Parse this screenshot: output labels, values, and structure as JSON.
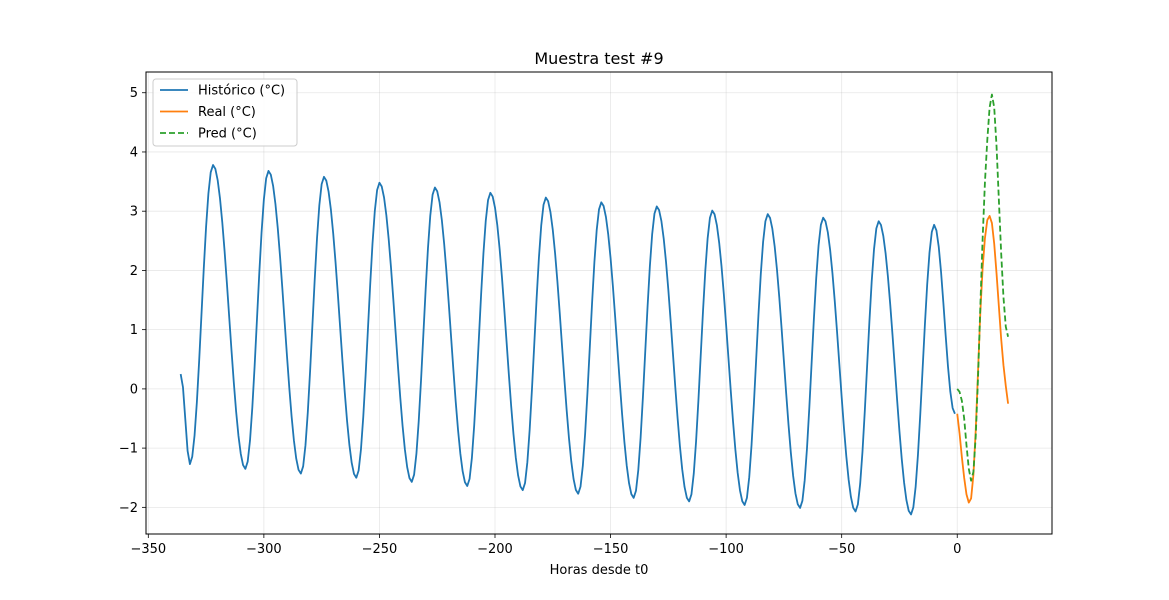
{
  "chart_data": {
    "type": "line",
    "title": "Muestra test #9",
    "xlabel": "Horas desde t0",
    "ylabel": "",
    "xlim": [
      -351,
      41
    ],
    "ylim": [
      -2.45,
      5.35
    ],
    "xticks": [
      -350,
      -300,
      -250,
      -200,
      -150,
      -100,
      -50,
      0
    ],
    "xtick_labels": [
      "−350",
      "−300",
      "−250",
      "−200",
      "−150",
      "−100",
      "−50",
      "0"
    ],
    "yticks": [
      -2,
      -1,
      0,
      1,
      2,
      3,
      4,
      5
    ],
    "ytick_labels": [
      "−2",
      "−1",
      "0",
      "1",
      "2",
      "3",
      "4",
      "5"
    ],
    "grid": true,
    "legend_position": "top-left",
    "series": [
      {
        "name": "Histórico (°C)",
        "color": "#1f77b4",
        "style": "solid",
        "generator": "periodic",
        "x_start": -336,
        "x_end": -1,
        "period": 24,
        "min_x_offset": -3,
        "max_x_offset": 10,
        "peaks": [
          {
            "x": -322,
            "y": 3.78
          },
          {
            "x": -298,
            "y": 3.68
          },
          {
            "x": -274,
            "y": 3.58
          },
          {
            "x": -250,
            "y": 3.48
          },
          {
            "x": -226,
            "y": 3.4
          },
          {
            "x": -202,
            "y": 3.31
          },
          {
            "x": -178,
            "y": 3.23
          },
          {
            "x": -154,
            "y": 3.15
          },
          {
            "x": -130,
            "y": 3.08
          },
          {
            "x": -106,
            "y": 3.01
          },
          {
            "x": -82,
            "y": 2.95
          },
          {
            "x": -58,
            "y": 2.89
          },
          {
            "x": -34,
            "y": 2.83
          },
          {
            "x": -10,
            "y": 2.77
          }
        ],
        "troughs": [
          {
            "x": -332,
            "y": -1.27
          },
          {
            "x": -308,
            "y": -1.35
          },
          {
            "x": -284,
            "y": -1.43
          },
          {
            "x": -260,
            "y": -1.5
          },
          {
            "x": -236,
            "y": -1.57
          },
          {
            "x": -212,
            "y": -1.64
          },
          {
            "x": -188,
            "y": -1.71
          },
          {
            "x": -164,
            "y": -1.77
          },
          {
            "x": -140,
            "y": -1.84
          },
          {
            "x": -116,
            "y": -1.9
          },
          {
            "x": -92,
            "y": -1.96
          },
          {
            "x": -68,
            "y": -2.01
          },
          {
            "x": -44,
            "y": -2.07
          },
          {
            "x": -20,
            "y": -2.12
          }
        ],
        "start_y": 0.25,
        "end_y": -0.42
      },
      {
        "name": "Real (°C)",
        "color": "#ff7f0e",
        "style": "solid",
        "points": [
          [
            0,
            -0.42
          ],
          [
            1,
            -0.75
          ],
          [
            2,
            -1.15
          ],
          [
            3,
            -1.5
          ],
          [
            4,
            -1.78
          ],
          [
            5,
            -1.92
          ],
          [
            6,
            -1.85
          ],
          [
            7,
            -1.45
          ],
          [
            8,
            -0.7
          ],
          [
            9,
            0.3
          ],
          [
            10,
            1.3
          ],
          [
            11,
            2.05
          ],
          [
            12,
            2.55
          ],
          [
            13,
            2.85
          ],
          [
            14,
            2.92
          ],
          [
            15,
            2.8
          ],
          [
            16,
            2.45
          ],
          [
            17,
            1.95
          ],
          [
            18,
            1.4
          ],
          [
            19,
            0.85
          ],
          [
            20,
            0.4
          ],
          [
            21,
            0.05
          ],
          [
            22,
            -0.25
          ]
        ]
      },
      {
        "name": "Pred (°C)",
        "color": "#2ca02c",
        "style": "dashed",
        "points": [
          [
            0,
            0.0
          ],
          [
            1,
            -0.05
          ],
          [
            2,
            -0.2
          ],
          [
            3,
            -0.5
          ],
          [
            4,
            -0.95
          ],
          [
            5,
            -1.35
          ],
          [
            6,
            -1.55
          ],
          [
            7,
            -1.4
          ],
          [
            8,
            -0.8
          ],
          [
            9,
            0.2
          ],
          [
            10,
            1.4
          ],
          [
            11,
            2.55
          ],
          [
            12,
            3.5
          ],
          [
            13,
            4.2
          ],
          [
            14,
            4.75
          ],
          [
            15,
            4.97
          ],
          [
            16,
            4.75
          ],
          [
            17,
            4.1
          ],
          [
            18,
            3.2
          ],
          [
            19,
            2.3
          ],
          [
            20,
            1.55
          ],
          [
            21,
            1.05
          ],
          [
            22,
            0.88
          ]
        ]
      }
    ]
  }
}
